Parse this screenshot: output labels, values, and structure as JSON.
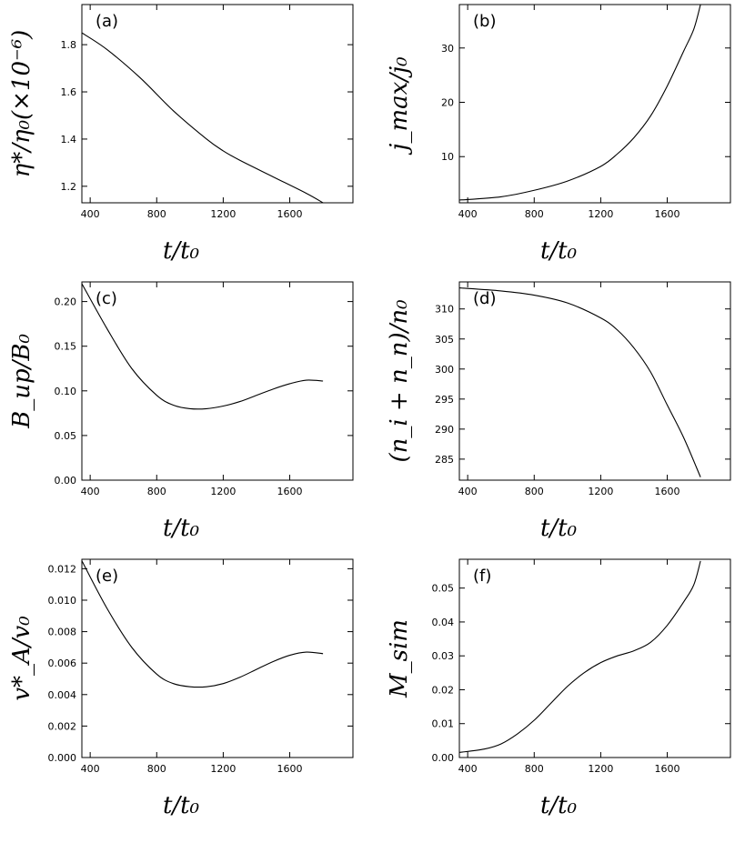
{
  "chart_data": [
    {
      "type": "line",
      "panel_label": "(a)",
      "xlabel": "t/t₀",
      "ylabel": "η*/η₀(×10⁻⁶)",
      "xlim": [
        350,
        1980
      ],
      "ylim": [
        1.13,
        1.97
      ],
      "xticks": [
        400,
        800,
        1200,
        1600
      ],
      "xtick_labels": [
        "400",
        "800",
        "1200",
        "1600"
      ],
      "yticks": [
        1.2,
        1.4,
        1.6,
        1.8
      ],
      "ytick_labels": [
        "1.2",
        "1.4",
        "1.6",
        "1.8"
      ],
      "series": [
        {
          "name": "eta",
          "x": [
            350,
            500,
            700,
            900,
            1100,
            1200,
            1300,
            1500,
            1700,
            1800
          ],
          "y": [
            1.85,
            1.78,
            1.66,
            1.52,
            1.4,
            1.35,
            1.31,
            1.24,
            1.17,
            1.13
          ]
        }
      ]
    },
    {
      "type": "line",
      "panel_label": "(b)",
      "xlabel": "t/t₀",
      "ylabel": "j_max/j₀",
      "xlim": [
        350,
        1980
      ],
      "ylim": [
        1.5,
        38
      ],
      "xticks": [
        400,
        800,
        1200,
        1600
      ],
      "xtick_labels": [
        "400",
        "800",
        "1200",
        "1600"
      ],
      "yticks": [
        10,
        20,
        30
      ],
      "ytick_labels": [
        "10",
        "20",
        "30"
      ],
      "series": [
        {
          "name": "jmax",
          "x": [
            350,
            600,
            800,
            1000,
            1200,
            1300,
            1400,
            1500,
            1600,
            1700,
            1760,
            1800
          ],
          "y": [
            2,
            2.6,
            3.8,
            5.5,
            8.2,
            10.5,
            13.5,
            17.5,
            23,
            29.5,
            33.5,
            38
          ]
        }
      ]
    },
    {
      "type": "line",
      "panel_label": "(c)",
      "xlabel": "t/t₀",
      "ylabel": "B_up/B₀",
      "xlim": [
        350,
        1980
      ],
      "ylim": [
        0.0,
        0.222
      ],
      "xticks": [
        400,
        800,
        1200,
        1600
      ],
      "xtick_labels": [
        "400",
        "800",
        "1200",
        "1600"
      ],
      "yticks": [
        0.0,
        0.05,
        0.1,
        0.15,
        0.2
      ],
      "ytick_labels": [
        "0.00",
        "0.05",
        "0.10",
        "0.15",
        "0.20"
      ],
      "series": [
        {
          "name": "Bup",
          "x": [
            350,
            500,
            650,
            800,
            900,
            1000,
            1100,
            1200,
            1300,
            1400,
            1500,
            1600,
            1700,
            1800
          ],
          "y": [
            0.22,
            0.17,
            0.125,
            0.095,
            0.084,
            0.08,
            0.08,
            0.083,
            0.088,
            0.095,
            0.102,
            0.108,
            0.112,
            0.111
          ]
        }
      ]
    },
    {
      "type": "line",
      "panel_label": "(d)",
      "xlabel": "t/t₀",
      "ylabel": "(n_i + n_n)/n₀",
      "xlim": [
        350,
        1980
      ],
      "ylim": [
        281.5,
        314.5
      ],
      "xticks": [
        400,
        800,
        1200,
        1600
      ],
      "xtick_labels": [
        "400",
        "800",
        "1200",
        "1600"
      ],
      "yticks": [
        285,
        290,
        295,
        300,
        305,
        310
      ],
      "ytick_labels": [
        "285",
        "290",
        "295",
        "300",
        "305",
        "310"
      ],
      "series": [
        {
          "name": "n",
          "x": [
            350,
            600,
            800,
            1000,
            1200,
            1300,
            1400,
            1500,
            1600,
            1700,
            1800
          ],
          "y": [
            313.5,
            313,
            312.3,
            311,
            308.5,
            306.5,
            303.5,
            299.5,
            294,
            288.5,
            282
          ]
        }
      ]
    },
    {
      "type": "line",
      "panel_label": "(e)",
      "xlabel": "t/t₀",
      "ylabel": "v*_A/v₀",
      "xlim": [
        350,
        1980
      ],
      "ylim": [
        0.0,
        0.0126
      ],
      "xticks": [
        400,
        800,
        1200,
        1600
      ],
      "xtick_labels": [
        "400",
        "800",
        "1200",
        "1600"
      ],
      "yticks": [
        0.0,
        0.002,
        0.004,
        0.006,
        0.008,
        0.01,
        0.012
      ],
      "ytick_labels": [
        "0.000",
        "0.002",
        "0.004",
        "0.006",
        "0.008",
        "0.010",
        "0.012"
      ],
      "series": [
        {
          "name": "vA",
          "x": [
            350,
            500,
            650,
            800,
            900,
            1000,
            1100,
            1200,
            1300,
            1400,
            1500,
            1600,
            1700,
            1800
          ],
          "y": [
            0.0125,
            0.0095,
            0.007,
            0.0053,
            0.0047,
            0.0045,
            0.0045,
            0.0047,
            0.0051,
            0.0056,
            0.0061,
            0.0065,
            0.0067,
            0.0066
          ]
        }
      ]
    },
    {
      "type": "line",
      "panel_label": "(f)",
      "xlabel": "t/t₀",
      "ylabel": "M_sim",
      "xlim": [
        350,
        1980
      ],
      "ylim": [
        0.0,
        0.0585
      ],
      "xticks": [
        400,
        800,
        1200,
        1600
      ],
      "xtick_labels": [
        "400",
        "800",
        "1200",
        "1600"
      ],
      "yticks": [
        0.0,
        0.01,
        0.02,
        0.03,
        0.04,
        0.05
      ],
      "ytick_labels": [
        "0.00",
        "0.01",
        "0.02",
        "0.03",
        "0.04",
        "0.05"
      ],
      "series": [
        {
          "name": "Msim",
          "x": [
            350,
            500,
            600,
            700,
            800,
            900,
            1000,
            1100,
            1200,
            1300,
            1400,
            1500,
            1600,
            1700,
            1760,
            1800
          ],
          "y": [
            0.0015,
            0.0025,
            0.004,
            0.007,
            0.011,
            0.016,
            0.021,
            0.025,
            0.028,
            0.03,
            0.0315,
            0.034,
            0.039,
            0.046,
            0.051,
            0.058
          ]
        }
      ]
    }
  ]
}
